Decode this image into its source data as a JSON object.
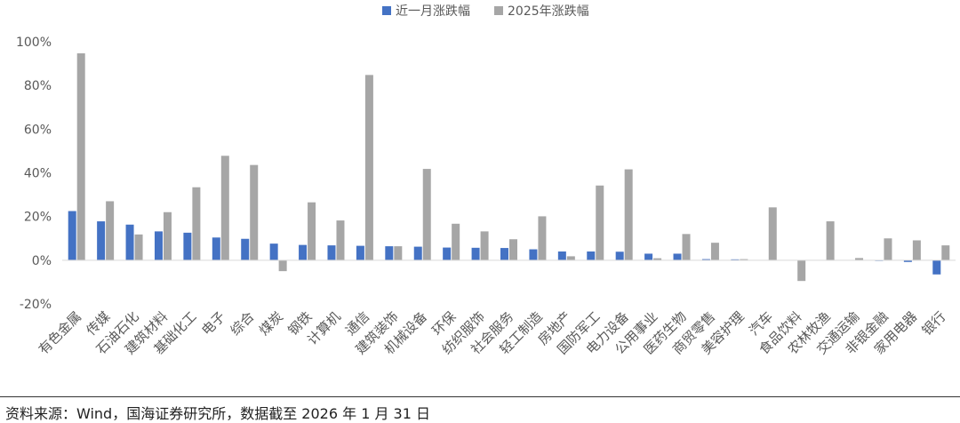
{
  "chart_data": {
    "type": "bar",
    "legend_position": "top",
    "grid": false,
    "ylim": [
      -20,
      100
    ],
    "yticks": [
      -20,
      0,
      20,
      40,
      60,
      80,
      100
    ],
    "ytick_labels": [
      "-20%",
      "0%",
      "20%",
      "40%",
      "60%",
      "80%",
      "100%"
    ],
    "categories": [
      "有色金属",
      "传媒",
      "石油石化",
      "建筑材料",
      "基础化工",
      "电子",
      "综合",
      "煤炭",
      "钢铁",
      "计算机",
      "通信",
      "建筑装饰",
      "机械设备",
      "环保",
      "纺织服饰",
      "社会服务",
      "轻工制造",
      "房地产",
      "国防军工",
      "电力设备",
      "公用事业",
      "医药生物",
      "商贸零售",
      "美容护理",
      "汽车",
      "食品饮料",
      "农林牧渔",
      "交通运输",
      "非银金融",
      "家用电器",
      "银行"
    ],
    "series": [
      {
        "name": "近一月涨跌幅",
        "color": "#4472C4",
        "values": [
          22.5,
          17.8,
          16.3,
          13.2,
          12.6,
          10.4,
          9.8,
          7.6,
          7.0,
          6.8,
          6.6,
          6.4,
          6.2,
          5.8,
          5.7,
          5.6,
          5.0,
          4.0,
          4.0,
          3.9,
          3.0,
          3.0,
          0.5,
          0.4,
          0.0,
          0.0,
          0.0,
          0.0,
          -0.3,
          -0.8,
          -6.5
        ]
      },
      {
        "name": "2025年涨跌幅",
        "color": "#A6A6A6",
        "values": [
          94.7,
          27.0,
          11.8,
          22.0,
          33.4,
          47.8,
          43.6,
          -5.0,
          26.5,
          18.2,
          84.8,
          6.4,
          41.8,
          16.7,
          13.2,
          9.6,
          20.1,
          1.8,
          34.2,
          41.6,
          0.9,
          12.0,
          8.0,
          0.5,
          24.2,
          -9.5,
          17.8,
          1.0,
          10.0,
          9.1,
          6.8
        ]
      }
    ]
  },
  "footer": {
    "source": "资料来源：Wind，国海证券研究所，数据截至 2026 年 1 月 31 日"
  }
}
